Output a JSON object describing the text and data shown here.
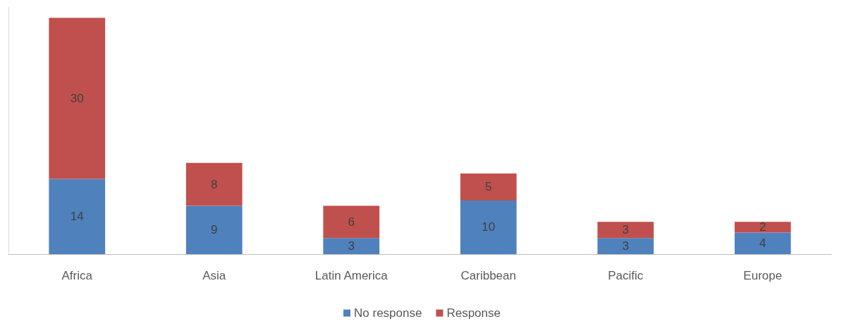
{
  "chart_data": {
    "type": "bar",
    "stacked": true,
    "categories": [
      "Africa",
      "Asia",
      "Latin America",
      "Caribbean",
      "Pacific",
      "Europe"
    ],
    "series": [
      {
        "name": "No response",
        "color": "#4f81bd",
        "values": [
          14,
          9,
          3,
          10,
          3,
          4
        ]
      },
      {
        "name": "Response",
        "color": "#c0504d",
        "values": [
          30,
          8,
          6,
          5,
          3,
          2
        ]
      }
    ],
    "data_labels": true,
    "legend": "bottom",
    "grid": false
  }
}
